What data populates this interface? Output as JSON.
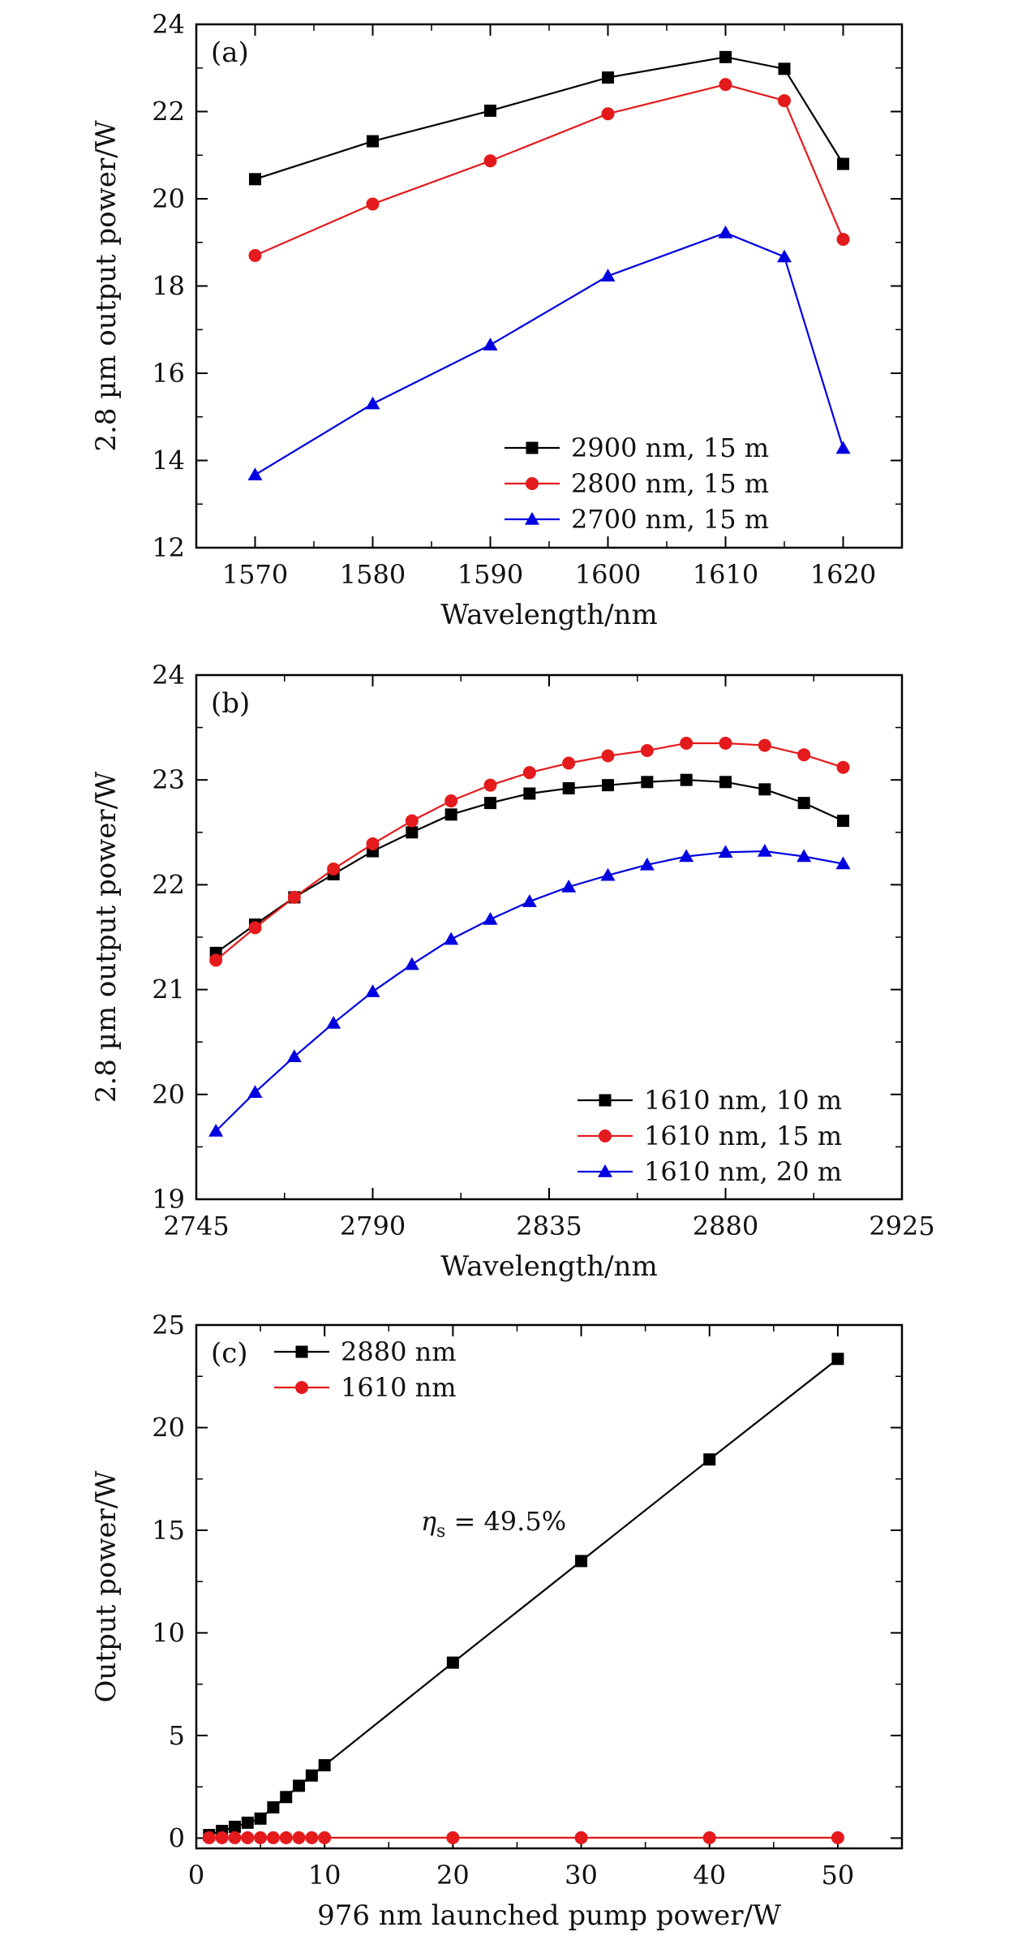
{
  "chart_data": [
    {
      "type": "line",
      "panel_label": "(a)",
      "xlabel": "Wavelength/nm",
      "ylabel": "2.8 µm output power/W",
      "xlim": [
        1565,
        1625
      ],
      "ylim": [
        12,
        24
      ],
      "xticks": [
        1570,
        1580,
        1590,
        1600,
        1610,
        1620
      ],
      "yticks": [
        12,
        14,
        16,
        18,
        20,
        22,
        24
      ],
      "legend_position": "bottom-right",
      "series": [
        {
          "name": "2900 nm, 15 m",
          "color": "#000000",
          "marker": "square",
          "x": [
            1570,
            1580,
            1590,
            1600,
            1610,
            1615,
            1620
          ],
          "y": [
            20.45,
            21.32,
            22.02,
            22.78,
            23.25,
            22.98,
            20.8
          ]
        },
        {
          "name": "2800 nm, 15 m",
          "color": "#e41a1c",
          "marker": "circle",
          "x": [
            1570,
            1580,
            1590,
            1600,
            1610,
            1615,
            1620
          ],
          "y": [
            18.7,
            19.88,
            20.87,
            21.95,
            22.62,
            22.25,
            19.07
          ]
        },
        {
          "name": "2700 nm, 15 m",
          "color": "#0000e0",
          "marker": "triangle",
          "x": [
            1570,
            1580,
            1590,
            1600,
            1610,
            1615,
            1620
          ],
          "y": [
            13.67,
            15.3,
            16.65,
            18.23,
            19.22,
            18.67,
            14.28
          ]
        }
      ]
    },
    {
      "type": "line",
      "panel_label": "(b)",
      "xlabel": "Wavelength/nm",
      "ylabel": "2.8 µm output power/W",
      "xlim": [
        2745,
        2925
      ],
      "ylim": [
        19,
        24
      ],
      "xticks": [
        2745,
        2790,
        2835,
        2880,
        2925
      ],
      "yticks": [
        19,
        20,
        21,
        22,
        23,
        24
      ],
      "legend_position": "bottom-right",
      "series": [
        {
          "name": "1610 nm, 10 m",
          "color": "#000000",
          "marker": "square",
          "x": [
            2750,
            2760,
            2770,
            2780,
            2790,
            2800,
            2810,
            2820,
            2830,
            2840,
            2850,
            2860,
            2870,
            2880,
            2890,
            2900,
            2910
          ],
          "y": [
            21.35,
            21.62,
            21.88,
            22.1,
            22.32,
            22.5,
            22.67,
            22.78,
            22.87,
            22.92,
            22.95,
            22.98,
            23.0,
            22.98,
            22.91,
            22.78,
            22.61
          ]
        },
        {
          "name": "1610 nm, 15 m",
          "color": "#e41a1c",
          "marker": "circle",
          "x": [
            2750,
            2760,
            2770,
            2780,
            2790,
            2800,
            2810,
            2820,
            2830,
            2840,
            2850,
            2860,
            2870,
            2880,
            2890,
            2900,
            2910
          ],
          "y": [
            21.28,
            21.59,
            21.88,
            22.15,
            22.39,
            22.61,
            22.8,
            22.95,
            23.07,
            23.16,
            23.23,
            23.28,
            23.35,
            23.35,
            23.33,
            23.24,
            23.12
          ]
        },
        {
          "name": "1610 nm, 20 m",
          "color": "#0000e0",
          "marker": "triangle",
          "x": [
            2750,
            2760,
            2770,
            2780,
            2790,
            2800,
            2810,
            2820,
            2830,
            2840,
            2850,
            2860,
            2870,
            2880,
            2890,
            2900,
            2910
          ],
          "y": [
            19.65,
            20.02,
            20.36,
            20.68,
            20.98,
            21.24,
            21.48,
            21.67,
            21.84,
            21.98,
            22.09,
            22.19,
            22.27,
            22.31,
            22.32,
            22.27,
            22.2
          ]
        }
      ]
    },
    {
      "type": "line",
      "panel_label": "(c)",
      "xlabel": "976 nm launched pump power/W",
      "ylabel": "Output power/W",
      "xlim": [
        0,
        55
      ],
      "ylim": [
        -0.5,
        25
      ],
      "xticks": [
        0,
        10,
        20,
        30,
        40,
        50
      ],
      "yticks": [
        0,
        5,
        10,
        15,
        20,
        25
      ],
      "legend_position": "top-left",
      "annotation": {
        "symbol": "η",
        "subscript": "s",
        "text": " = 49.5%",
        "x": 17.5,
        "y": 15.0
      },
      "series": [
        {
          "name": "2880 nm",
          "color": "#000000",
          "marker": "square",
          "x": [
            1,
            2,
            3,
            4,
            5,
            6,
            7,
            8,
            9,
            10,
            20,
            30,
            40,
            50
          ],
          "y": [
            0.15,
            0.35,
            0.55,
            0.75,
            0.95,
            1.5,
            2.0,
            2.55,
            3.05,
            3.55,
            8.55,
            13.5,
            18.45,
            23.35
          ]
        },
        {
          "name": "1610 nm",
          "color": "#e41a1c",
          "marker": "circle",
          "x": [
            1,
            2,
            3,
            4,
            5,
            6,
            7,
            8,
            9,
            10,
            20,
            30,
            40,
            50
          ],
          "y": [
            0.02,
            0.02,
            0.02,
            0.02,
            0.02,
            0.02,
            0.02,
            0.02,
            0.02,
            0.02,
            0.02,
            0.02,
            0.02,
            0.02
          ]
        }
      ]
    }
  ]
}
